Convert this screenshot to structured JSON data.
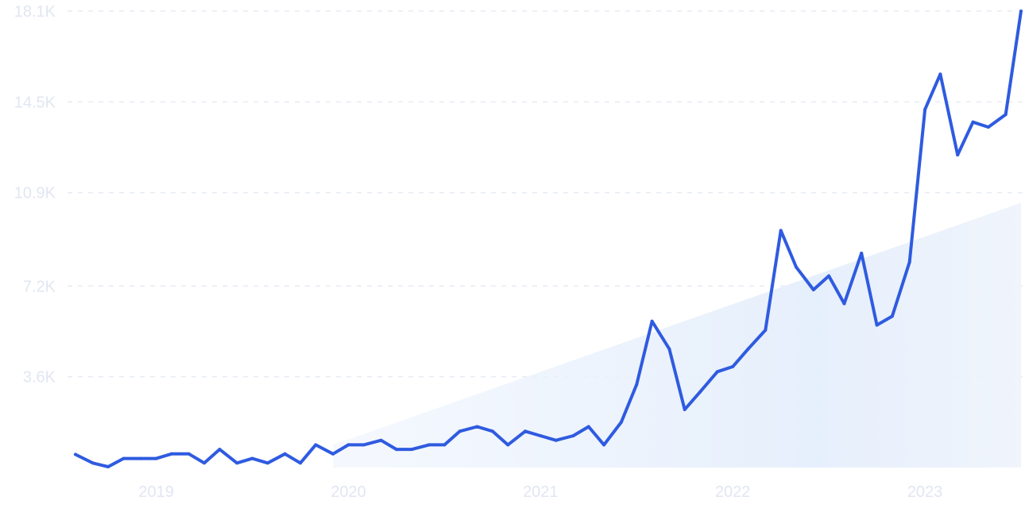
{
  "chart_data": {
    "type": "line",
    "title": "",
    "xlabel": "",
    "ylabel": "",
    "ylim": [
      0,
      18100
    ],
    "grid": true,
    "y_ticks": [
      {
        "value": 3600,
        "label": "3.6K"
      },
      {
        "value": 7200,
        "label": "7.2K"
      },
      {
        "value": 10900,
        "label": "10.9K"
      },
      {
        "value": 14500,
        "label": "14.5K"
      },
      {
        "value": 18100,
        "label": "18.1K"
      }
    ],
    "x_ticks": [
      {
        "value": 2019.0,
        "label": "2019"
      },
      {
        "value": 2020.0,
        "label": "2020"
      },
      {
        "value": 2021.0,
        "label": "2021"
      },
      {
        "value": 2022.0,
        "label": "2022"
      },
      {
        "value": 2023.0,
        "label": "2023"
      }
    ],
    "series": [
      {
        "color": "#2f5be0",
        "points": [
          [
            2018.58,
            520
          ],
          [
            2018.67,
            180
          ],
          [
            2018.75,
            30
          ],
          [
            2018.83,
            360
          ],
          [
            2018.92,
            360
          ],
          [
            2019.0,
            360
          ],
          [
            2019.08,
            540
          ],
          [
            2019.17,
            540
          ],
          [
            2019.25,
            180
          ],
          [
            2019.33,
            720
          ],
          [
            2019.42,
            180
          ],
          [
            2019.5,
            360
          ],
          [
            2019.58,
            180
          ],
          [
            2019.67,
            540
          ],
          [
            2019.75,
            180
          ],
          [
            2019.83,
            900
          ],
          [
            2019.92,
            540
          ],
          [
            2020.0,
            900
          ],
          [
            2020.08,
            900
          ],
          [
            2020.17,
            1080
          ],
          [
            2020.25,
            720
          ],
          [
            2020.33,
            720
          ],
          [
            2020.42,
            900
          ],
          [
            2020.5,
            900
          ],
          [
            2020.58,
            1440
          ],
          [
            2020.67,
            1620
          ],
          [
            2020.75,
            1440
          ],
          [
            2020.83,
            900
          ],
          [
            2020.92,
            1440
          ],
          [
            2021.0,
            1260
          ],
          [
            2021.08,
            1080
          ],
          [
            2021.17,
            1260
          ],
          [
            2021.25,
            1620
          ],
          [
            2021.33,
            900
          ],
          [
            2021.42,
            1800
          ],
          [
            2021.5,
            3300
          ],
          [
            2021.58,
            5800
          ],
          [
            2021.67,
            4700
          ],
          [
            2021.75,
            2300
          ],
          [
            2021.83,
            3000
          ],
          [
            2021.92,
            3800
          ],
          [
            2022.0,
            4000
          ],
          [
            2022.08,
            4700
          ],
          [
            2022.17,
            5450
          ],
          [
            2022.25,
            9400
          ],
          [
            2022.33,
            7950
          ],
          [
            2022.42,
            7050
          ],
          [
            2022.5,
            7600
          ],
          [
            2022.58,
            6500
          ],
          [
            2022.67,
            8500
          ],
          [
            2022.75,
            5650
          ],
          [
            2022.83,
            6000
          ],
          [
            2022.92,
            8150
          ],
          [
            2023.0,
            14200
          ],
          [
            2023.08,
            15600
          ],
          [
            2023.17,
            12400
          ],
          [
            2023.25,
            13700
          ],
          [
            2023.33,
            13500
          ],
          [
            2023.42,
            14000
          ],
          [
            2023.5,
            18100
          ]
        ]
      }
    ],
    "trend": {
      "start": [
        2019.92,
        900
      ],
      "end": [
        2023.5,
        10500
      ],
      "color": "#dde8fb"
    },
    "colors": {
      "line": "#2f5be0",
      "grid": "#e3e8f2",
      "tick_label": "#e1e6f2"
    }
  }
}
